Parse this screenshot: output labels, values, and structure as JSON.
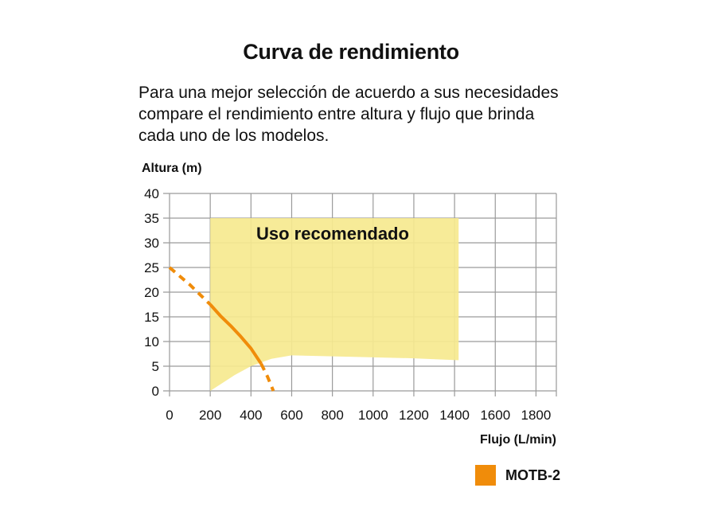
{
  "header": {
    "title": "Curva de rendimiento",
    "description_lines": [
      "Para una mejor selección de acuerdo a sus necesidades",
      "compare el rendimiento entre altura y flujo que brinda",
      "cada uno de los modelos."
    ]
  },
  "colors": {
    "recommended_fill": "#f6e98f",
    "curve": "#f08c0a",
    "grid": "#9a9a9a",
    "text": "#111111"
  },
  "chart_data": {
    "type": "line",
    "ylabel": "Altura (m)",
    "xlabel": "Flujo (L/min)",
    "xlim": [
      0,
      1900
    ],
    "ylim": [
      0,
      40
    ],
    "x_ticks": [
      0,
      200,
      400,
      600,
      800,
      1000,
      1200,
      1400,
      1600,
      1800
    ],
    "y_ticks": [
      0,
      5,
      10,
      15,
      20,
      25,
      30,
      35,
      40
    ],
    "x_grid": [
      0,
      200,
      400,
      600,
      800,
      1000,
      1200,
      1400,
      1600,
      1800,
      1900
    ],
    "grid": true,
    "recommended_zone": {
      "label": "Uso recomendado",
      "x_range": [
        200,
        1420
      ],
      "top": 35,
      "bottom_boundary": [
        {
          "x": 200,
          "y": 0
        },
        {
          "x": 260,
          "y": 1.6
        },
        {
          "x": 320,
          "y": 3.2
        },
        {
          "x": 400,
          "y": 5
        },
        {
          "x": 500,
          "y": 6.5
        },
        {
          "x": 600,
          "y": 7.2
        },
        {
          "x": 800,
          "y": 7.0
        },
        {
          "x": 1000,
          "y": 6.8
        },
        {
          "x": 1200,
          "y": 6.6
        },
        {
          "x": 1420,
          "y": 6.2
        }
      ]
    },
    "series": [
      {
        "name": "MOTB-2",
        "color": "#f08c0a",
        "points": [
          {
            "x": 0,
            "y": 25
          },
          {
            "x": 100,
            "y": 21.5
          },
          {
            "x": 200,
            "y": 17.5
          },
          {
            "x": 250,
            "y": 15.2
          },
          {
            "x": 300,
            "y": 13.2
          },
          {
            "x": 350,
            "y": 11
          },
          {
            "x": 400,
            "y": 8.6
          },
          {
            "x": 450,
            "y": 5.5
          },
          {
            "x": 480,
            "y": 3
          },
          {
            "x": 510,
            "y": 0
          }
        ],
        "dashed_segments": [
          [
            0,
            200
          ],
          [
            450,
            510
          ]
        ],
        "solid_segments": [
          [
            200,
            450
          ]
        ]
      }
    ],
    "legend": {
      "position": "bottom-right",
      "label": "MOTB-2"
    }
  }
}
